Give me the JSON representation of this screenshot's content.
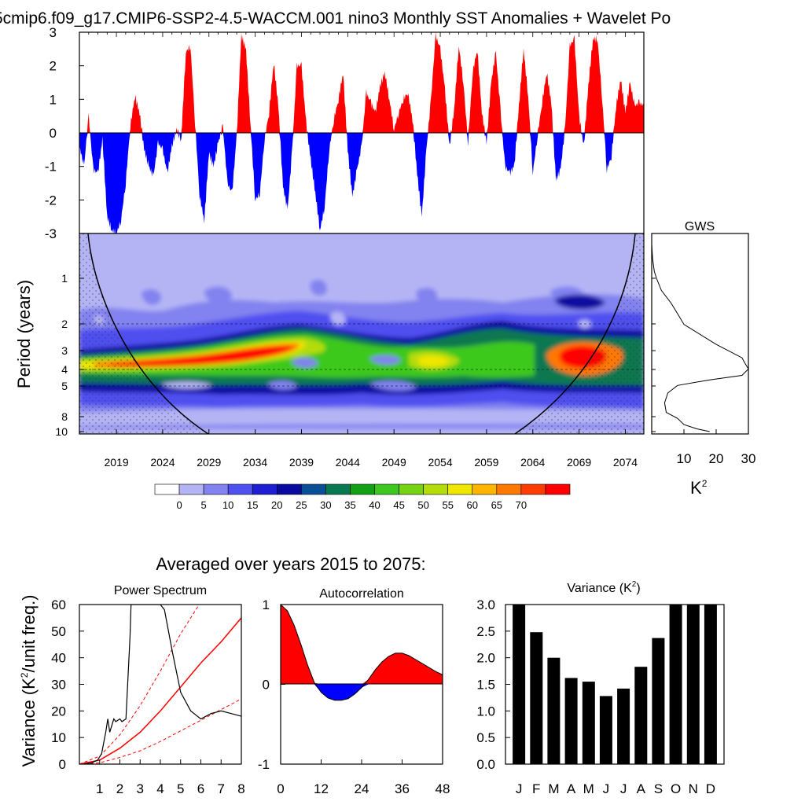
{
  "title": "5cmip6.f09_g17.CMIP6-SSP2-4.5-WACCM.001 nino3 Monthly SST Anomalies + Wavelet Po",
  "subtitle": "Averaged over years 2015 to 2075:",
  "colors": {
    "positive": "#ff0000",
    "negative": "#0000ff",
    "line": "#000000",
    "sig_line": "#ff0000"
  },
  "chart_data": [
    {
      "type": "area",
      "name": "timeseries",
      "ylim": [
        -3,
        3
      ],
      "yticks": [
        "3",
        "2",
        "1",
        "0",
        "-1",
        "-2",
        "-3"
      ],
      "xlim": [
        2015,
        2076
      ],
      "x": [
        2015.0,
        2015.5,
        2016.0,
        2016.5,
        2017.0,
        2017.5,
        2018.0,
        2018.5,
        2019.0,
        2019.5,
        2020.0,
        2020.5,
        2021.0,
        2021.5,
        2022.0,
        2022.5,
        2023.0,
        2023.5,
        2024.0,
        2024.5,
        2025.0,
        2025.5,
        2026.0,
        2026.5,
        2027.0,
        2027.5,
        2028.0,
        2028.5,
        2029.0,
        2029.5,
        2030.0,
        2030.5,
        2031.0,
        2031.5,
        2032.0,
        2032.5,
        2033.0,
        2033.5,
        2034.0,
        2034.5,
        2035.0,
        2035.5,
        2036.0,
        2036.5,
        2037.0,
        2037.5,
        2038.0,
        2038.5,
        2039.0,
        2039.5,
        2040.0,
        2040.5,
        2041.0,
        2041.5,
        2042.0,
        2042.5,
        2043.0,
        2043.5,
        2044.0,
        2044.5,
        2045.0,
        2045.5,
        2046.0,
        2046.5,
        2047.0,
        2047.5,
        2048.0,
        2048.5,
        2049.0,
        2049.5,
        2050.0,
        2050.5,
        2051.0,
        2051.5,
        2052.0,
        2052.5,
        2053.0,
        2053.5,
        2054.0,
        2054.5,
        2055.0,
        2055.5,
        2056.0,
        2056.5,
        2057.0,
        2057.5,
        2058.0,
        2058.5,
        2059.0,
        2059.5,
        2060.0,
        2060.5,
        2061.0,
        2061.5,
        2062.0,
        2062.5,
        2063.0,
        2063.5,
        2064.0,
        2064.5,
        2065.0,
        2065.5,
        2066.0,
        2066.5,
        2067.0,
        2067.5,
        2068.0,
        2068.5,
        2069.0,
        2069.5,
        2070.0,
        2070.5,
        2071.0,
        2071.5,
        2072.0,
        2072.5,
        2073.0,
        2073.5,
        2074.0,
        2074.5,
        2075.0,
        2075.5,
        2076.0
      ],
      "values": [
        -0.4,
        -1.0,
        0.5,
        -1.1,
        -1.2,
        -0.2,
        -2.5,
        -2.9,
        -3.0,
        -2.6,
        -1.5,
        0.2,
        1.1,
        0.6,
        -0.5,
        -1.0,
        -1.3,
        -0.3,
        -0.5,
        -1.2,
        -0.4,
        0.1,
        -0.2,
        2.4,
        2.6,
        0.3,
        -1.9,
        -2.6,
        -0.6,
        -1.0,
        -0.3,
        0.2,
        -1.5,
        -1.8,
        -0.1,
        2.9,
        2.5,
        0.2,
        -2.0,
        -1.8,
        -0.2,
        0.6,
        2.1,
        0.8,
        -1.6,
        -2.3,
        -0.5,
        2.0,
        2.0,
        0.3,
        -0.8,
        -1.8,
        -2.9,
        -2.2,
        -0.5,
        0.4,
        1.0,
        1.8,
        -0.5,
        -1.9,
        -1.1,
        -0.4,
        1.2,
        0.9,
        0.6,
        1.4,
        1.8,
        1.0,
        0.1,
        0.6,
        1.0,
        1.2,
        0.4,
        -1.2,
        -2.5,
        -0.5,
        1.0,
        2.9,
        2.5,
        1.3,
        -0.4,
        0.7,
        2.6,
        1.5,
        -0.3,
        1.8,
        2.5,
        0.6,
        -0.3,
        1.5,
        2.4,
        0.7,
        -1.0,
        -1.2,
        -1.0,
        0.8,
        2.5,
        1.1,
        -1.2,
        -0.1,
        0.9,
        1.8,
        0.9,
        -1.4,
        -1.1,
        0.2,
        2.6,
        2.8,
        0.5,
        -0.4,
        1.4,
        2.8,
        2.8,
        1.0,
        -1.1,
        -0.7,
        0.8,
        1.6,
        0.6,
        1.5,
        0.8,
        0.9,
        0.8
      ]
    },
    {
      "type": "heatmap",
      "name": "wavelet_power",
      "ylabel": "Period (years)",
      "yticks": [
        "1",
        "2",
        "3",
        "4",
        "5",
        "8",
        "10"
      ],
      "xticks": [
        "2019",
        "2024",
        "2029",
        "2034",
        "2039",
        "2044",
        "2049",
        "2054",
        "2059",
        "2064",
        "2069",
        "2074"
      ],
      "xlim": [
        2015,
        2076
      ],
      "levels": [
        0,
        5,
        10,
        15,
        20,
        25,
        30,
        35,
        40,
        45,
        50,
        55,
        60,
        65,
        70
      ],
      "level_colors": [
        "#ffffff",
        "#b4b4f5",
        "#8282f0",
        "#5050f0",
        "#1e1ed2",
        "#0a0aa0",
        "#0a5096",
        "#0a7850",
        "#14a014",
        "#3cc81e",
        "#78d214",
        "#b4dc0a",
        "#f0e600",
        "#ffb400",
        "#ff7800",
        "#ff3c00",
        "#ff0000"
      ],
      "colorbar_labels": [
        "0",
        "5",
        "10",
        "15",
        "20",
        "25",
        "30",
        "35",
        "40",
        "45",
        "50",
        "55",
        "60",
        "65",
        "70"
      ]
    },
    {
      "type": "line",
      "name": "gws",
      "title": "GWS",
      "xlabel": "K²",
      "xticks": [
        "10",
        "20",
        "30"
      ],
      "xlim": [
        0,
        30
      ],
      "x": [
        0.0,
        0.3,
        0.8,
        1.5,
        3,
        6,
        8,
        10,
        20,
        28,
        29,
        30,
        28,
        18,
        8,
        5,
        4,
        4.5,
        8,
        10,
        14,
        18
      ],
      "y": [
        0.6,
        0.75,
        0.9,
        1.0,
        1.2,
        1.45,
        1.7,
        2.0,
        2.7,
        3.3,
        3.6,
        3.9,
        4.3,
        4.6,
        5.0,
        5.6,
        6.5,
        7.5,
        8.2,
        9.0,
        9.6,
        10.0
      ]
    },
    {
      "type": "line",
      "name": "power_spectrum",
      "title": "Power Spectrum",
      "ylabel": "Variance (K²/unit freq.)",
      "ylim": [
        0,
        60
      ],
      "xlim": [
        0,
        8
      ],
      "xticks": [
        "1",
        "2",
        "3",
        "4",
        "5",
        "6",
        "7",
        "8"
      ],
      "yticks": [
        "0",
        "10",
        "20",
        "30",
        "40",
        "50",
        "60"
      ],
      "x": [
        0.2,
        0.6,
        0.9,
        1.1,
        1.3,
        1.4,
        1.5,
        1.7,
        1.8,
        2.0,
        2.1,
        2.3,
        2.5,
        2.55,
        4.0,
        4.2,
        4.6,
        5.0,
        5.5,
        6.0,
        6.5,
        7.0,
        7.5,
        8.0
      ],
      "values": [
        0,
        0.5,
        1.5,
        4,
        12,
        17,
        12,
        17,
        16,
        17,
        16,
        17,
        48,
        60,
        60,
        58,
        42,
        27,
        20,
        17,
        19,
        20,
        19,
        18
      ],
      "red": {
        "x": [
          0,
          1,
          2,
          3,
          4,
          5,
          6,
          7,
          8
        ],
        "y": [
          0,
          1.5,
          6,
          12,
          20,
          29,
          38,
          46,
          55
        ]
      },
      "red_upper": {
        "x": [
          0,
          1,
          2,
          3,
          4,
          5,
          6
        ],
        "y": [
          0,
          3,
          11,
          22,
          35,
          49,
          61
        ]
      },
      "red_lower": {
        "x": [
          0,
          1,
          2,
          3,
          4,
          5,
          6,
          7,
          8
        ],
        "y": [
          0,
          0.5,
          2.5,
          5,
          8.5,
          12.5,
          16.5,
          20.5,
          24.5
        ]
      }
    },
    {
      "type": "area",
      "name": "autocorrelation",
      "title": "Autocorrelation",
      "ylim": [
        -1,
        1
      ],
      "xlim": [
        0,
        48
      ],
      "xticks": [
        "0",
        "12",
        "24",
        "36",
        "48"
      ],
      "yticks": [
        "1",
        "0",
        "-1"
      ],
      "lags": [
        0,
        2,
        4,
        6,
        8,
        10,
        12,
        14,
        16,
        18,
        20,
        22,
        24,
        26,
        28,
        30,
        32,
        34,
        36,
        38,
        40,
        42,
        44,
        46,
        48
      ],
      "values": [
        1.0,
        0.92,
        0.74,
        0.5,
        0.24,
        0.02,
        -0.1,
        -0.17,
        -0.2,
        -0.2,
        -0.18,
        -0.12,
        -0.04,
        0.06,
        0.18,
        0.28,
        0.35,
        0.39,
        0.39,
        0.36,
        0.31,
        0.26,
        0.21,
        0.16,
        0.12
      ]
    },
    {
      "type": "bar",
      "name": "variance",
      "title": "Variance (K²)",
      "ylim": [
        0,
        3
      ],
      "yticks": [
        "3.0",
        "2.5",
        "2.0",
        "1.5",
        "1.0",
        "0.5",
        "0.0"
      ],
      "categories": [
        "J",
        "F",
        "M",
        "A",
        "M",
        "J",
        "J",
        "A",
        "S",
        "O",
        "N",
        "D"
      ],
      "values": [
        3.0,
        2.48,
        2.0,
        1.62,
        1.55,
        1.28,
        1.42,
        1.83,
        2.37,
        3.0,
        3.0,
        3.0
      ]
    }
  ]
}
